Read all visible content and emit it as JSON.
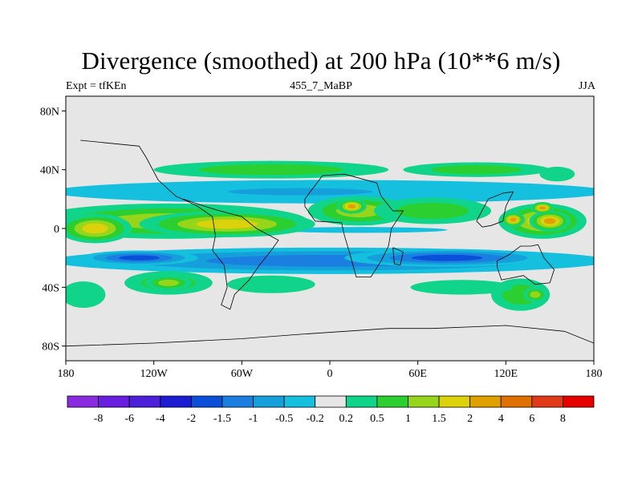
{
  "chart_data": {
    "type": "heatmap",
    "title": "Divergence (smoothed) at 200 hPa (10**6 m/s)",
    "subtitle_left": "Expt = tfKEn",
    "subtitle_center": "455_7_MaBP",
    "subtitle_right": "JJA",
    "x_ticks": [
      {
        "value": -180,
        "label": "180"
      },
      {
        "value": -120,
        "label": "120W"
      },
      {
        "value": -60,
        "label": "60W"
      },
      {
        "value": 0,
        "label": "0"
      },
      {
        "value": 60,
        "label": "60E"
      },
      {
        "value": 120,
        "label": "120E"
      },
      {
        "value": 180,
        "label": "180"
      }
    ],
    "y_ticks": [
      {
        "value": 80,
        "label": "80N"
      },
      {
        "value": 40,
        "label": "40N"
      },
      {
        "value": 0,
        "label": "0"
      },
      {
        "value": -40,
        "label": "40S"
      },
      {
        "value": -80,
        "label": "80S"
      }
    ],
    "xlim": [
      -180,
      180
    ],
    "ylim": [
      -90,
      90
    ],
    "colorbar": {
      "colors": [
        "#8a2be2",
        "#6a1ee0",
        "#4b20d8",
        "#1c1cd2",
        "#0b4fd8",
        "#1a7fe0",
        "#159fdb",
        "#14c0de",
        "#e6e6e6",
        "#0fd48a",
        "#2ccf30",
        "#97d51b",
        "#dcd20c",
        "#e0a000",
        "#e07000",
        "#e03a18",
        "#e60000"
      ],
      "labels": [
        "-8",
        "-6",
        "-4",
        "-2",
        "-1.5",
        "-1",
        "-0.5",
        "-0.2",
        "0.2",
        "0.5",
        "1",
        "1.5",
        "2",
        "4",
        "6",
        "8"
      ]
    },
    "blobs": [
      {
        "lon": -110,
        "lat": 5,
        "rx": 95,
        "ry": 12,
        "level": 3
      },
      {
        "lon": -70,
        "lat": 3,
        "rx": 60,
        "ry": 9,
        "level": 4
      },
      {
        "lon": -160,
        "lat": 0,
        "rx": 25,
        "ry": 10,
        "level": 4
      },
      {
        "lon": 20,
        "lat": 12,
        "rx": 35,
        "ry": 10,
        "level": 3
      },
      {
        "lon": 15,
        "lat": 15,
        "rx": 10,
        "ry": 5,
        "level": 5
      },
      {
        "lon": 70,
        "lat": 12,
        "rx": 40,
        "ry": 9,
        "level": 2
      },
      {
        "lon": 145,
        "lat": 5,
        "rx": 30,
        "ry": 12,
        "level": 4
      },
      {
        "lon": 150,
        "lat": 5,
        "rx": 14,
        "ry": 7,
        "level": 5
      },
      {
        "lon": 125,
        "lat": 6,
        "rx": 8,
        "ry": 5,
        "level": 5
      },
      {
        "lon": -40,
        "lat": 40,
        "rx": 80,
        "ry": 6,
        "level": 2
      },
      {
        "lon": 100,
        "lat": 40,
        "rx": 50,
        "ry": 5,
        "level": 2
      },
      {
        "lon": 155,
        "lat": 37,
        "rx": 12,
        "ry": 5,
        "level": 1
      },
      {
        "lon": -110,
        "lat": -37,
        "rx": 30,
        "ry": 8,
        "level": 2
      },
      {
        "lon": -110,
        "lat": -37,
        "rx": 16,
        "ry": 5,
        "level": 3
      },
      {
        "lon": -40,
        "lat": -38,
        "rx": 30,
        "ry": 6,
        "level": 1
      },
      {
        "lon": 130,
        "lat": -45,
        "rx": 20,
        "ry": 11,
        "level": 2
      },
      {
        "lon": 140,
        "lat": -45,
        "rx": 8,
        "ry": 5,
        "level": 3
      },
      {
        "lon": -168,
        "lat": -45,
        "rx": 15,
        "ry": 9,
        "level": 1
      },
      {
        "lon": 90,
        "lat": -40,
        "rx": 35,
        "ry": 5,
        "level": 1
      },
      {
        "lon": 145,
        "lat": 14,
        "rx": 8,
        "ry": 4,
        "level": 5
      }
    ],
    "neg_blobs": [
      {
        "lon": 0,
        "lat": -22,
        "rx": 190,
        "ry": 9,
        "level": -3
      },
      {
        "lon": 80,
        "lat": -20,
        "rx": 70,
        "ry": 6,
        "level": -4
      },
      {
        "lon": -130,
        "lat": -20,
        "rx": 40,
        "ry": 5,
        "level": -4
      },
      {
        "lon": 0,
        "lat": 25,
        "rx": 190,
        "ry": 8,
        "level": -1
      },
      {
        "lon": -20,
        "lat": 25,
        "rx": 80,
        "ry": 4,
        "level": -2
      },
      {
        "lon": 20,
        "lat": -1,
        "rx": 60,
        "ry": 2,
        "level": -1
      }
    ]
  }
}
